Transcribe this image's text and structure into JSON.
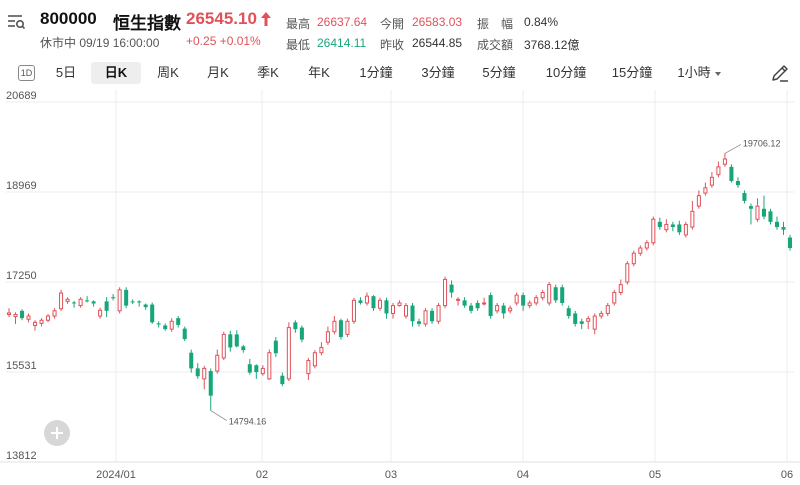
{
  "header": {
    "code": "800000",
    "name": "恒生指數",
    "price": "26545.10",
    "status": "休市中 09/19 16:00:00",
    "change": "+0.25 +0.01%",
    "stats": [
      {
        "label": "最高",
        "value": "26637.64",
        "tone": "red"
      },
      {
        "label": "今開",
        "value": "26583.03",
        "tone": "red"
      },
      {
        "label": "振　幅",
        "value": "0.84%",
        "tone": "dark"
      },
      {
        "label": "最低",
        "value": "26414.11",
        "tone": "green"
      },
      {
        "label": "昨收",
        "value": "26544.85",
        "tone": "dark"
      },
      {
        "label": "成交額",
        "value": "3768.12億",
        "tone": "dark"
      }
    ]
  },
  "toolbar": {
    "tabs": [
      "1D",
      "5日",
      "日K",
      "周K",
      "月K",
      "季K",
      "年K",
      "1分鐘",
      "3分鐘",
      "5分鐘",
      "10分鐘",
      "15分鐘",
      "1小時"
    ],
    "active": "日K"
  },
  "colors": {
    "up": "#e0525a",
    "down": "#17a67a"
  },
  "chart_data": {
    "type": "candlestick",
    "y_ticks": [
      "20689",
      "18969",
      "17250",
      "15531",
      "13812"
    ],
    "ylim": [
      13812,
      20689
    ],
    "x_ticks": [
      "2024/01",
      "02",
      "03",
      "04",
      "05",
      "06"
    ],
    "annotations": [
      {
        "label": "19706.12",
        "kind": "high"
      },
      {
        "label": "14794.16",
        "kind": "low"
      }
    ],
    "candles": [
      [
        16630,
        16660,
        16580,
        16750
      ],
      [
        16590,
        16630,
        16450,
        16670
      ],
      [
        16700,
        16560,
        16520,
        16730
      ],
      [
        16540,
        16600,
        16480,
        16650
      ],
      [
        16420,
        16480,
        16320,
        16520
      ],
      [
        16460,
        16520,
        16400,
        16560
      ],
      [
        16520,
        16600,
        16480,
        16640
      ],
      [
        16600,
        16700,
        16550,
        16750
      ],
      [
        16740,
        17040,
        16700,
        17100
      ],
      [
        16880,
        16920,
        16830,
        16960
      ],
      [
        16860,
        16850,
        16760,
        16890
      ],
      [
        16800,
        16920,
        16760,
        16960
      ],
      [
        16900,
        16880,
        16860,
        16980
      ],
      [
        16880,
        16840,
        16780,
        16900
      ],
      [
        16600,
        16710,
        16550,
        16760
      ],
      [
        16880,
        16700,
        16580,
        16960
      ],
      [
        16960,
        16940,
        16900,
        17020
      ],
      [
        16700,
        17100,
        16650,
        17150
      ],
      [
        17100,
        16800,
        16750,
        17150
      ],
      [
        16880,
        16870,
        16830,
        16920
      ],
      [
        16880,
        16860,
        16780,
        16900
      ],
      [
        16820,
        16770,
        16720,
        16840
      ],
      [
        16820,
        16480,
        16450,
        16860
      ],
      [
        16460,
        16440,
        16380,
        16500
      ],
      [
        16420,
        16350,
        16320,
        16460
      ],
      [
        16350,
        16500,
        16300,
        16560
      ],
      [
        16560,
        16430,
        16380,
        16600
      ],
      [
        16360,
        16160,
        16120,
        16400
      ],
      [
        15900,
        15600,
        15520,
        15960
      ],
      [
        15600,
        15450,
        15400,
        15700
      ],
      [
        15400,
        15600,
        15200,
        15650
      ],
      [
        15550,
        15080,
        14794,
        15600
      ],
      [
        15550,
        15850,
        15500,
        15960
      ],
      [
        15800,
        16250,
        15760,
        16300
      ],
      [
        16250,
        16000,
        15920,
        16320
      ],
      [
        16250,
        16020,
        16000,
        16330
      ],
      [
        16020,
        15950,
        15900,
        16050
      ],
      [
        15680,
        15520,
        15480,
        15780
      ],
      [
        15660,
        15530,
        15400,
        15680
      ],
      [
        15500,
        15600,
        15460,
        15660
      ],
      [
        15400,
        15900,
        15380,
        15960
      ],
      [
        16130,
        15890,
        15820,
        16200
      ],
      [
        15460,
        15300,
        15260,
        15520
      ],
      [
        15400,
        16380,
        15360,
        16480
      ],
      [
        16480,
        16350,
        16280,
        16520
      ],
      [
        16380,
        16150,
        16100,
        16420
      ],
      [
        15500,
        15750,
        15380,
        15800
      ],
      [
        15650,
        15900,
        15600,
        15950
      ],
      [
        15900,
        16000,
        15850,
        16100
      ],
      [
        16100,
        16300,
        16050,
        16400
      ],
      [
        16300,
        16500,
        16250,
        16600
      ],
      [
        16520,
        16200,
        16150,
        16550
      ],
      [
        16250,
        16500,
        16200,
        16550
      ],
      [
        16500,
        16900,
        16450,
        16950
      ],
      [
        16900,
        16850,
        16820,
        16960
      ],
      [
        16850,
        16980,
        16800,
        17050
      ],
      [
        16980,
        16750,
        16700,
        17000
      ],
      [
        16750,
        16900,
        16700,
        16950
      ],
      [
        16900,
        16650,
        16550,
        16950
      ],
      [
        16650,
        16800,
        16550,
        16850
      ],
      [
        16800,
        16850,
        16780,
        16900
      ],
      [
        16600,
        16800,
        16550,
        16850
      ],
      [
        16800,
        16500,
        16400,
        16850
      ],
      [
        16500,
        16450,
        16400,
        16550
      ],
      [
        16450,
        16700,
        16400,
        16750
      ],
      [
        16700,
        16500,
        16450,
        16750
      ],
      [
        16500,
        16800,
        16450,
        16850
      ],
      [
        16800,
        17300,
        16750,
        17350
      ],
      [
        17200,
        17050,
        16950,
        17280
      ],
      [
        16900,
        16920,
        16800,
        16960
      ],
      [
        16900,
        16800,
        16760,
        16960
      ],
      [
        16800,
        16700,
        16650,
        16850
      ],
      [
        16850,
        16750,
        16700,
        16900
      ],
      [
        16850,
        16850,
        16800,
        16950
      ],
      [
        17000,
        16600,
        16550,
        17050
      ],
      [
        16700,
        16800,
        16650,
        16850
      ],
      [
        16800,
        16650,
        16550,
        16850
      ],
      [
        16700,
        16750,
        16650,
        16800
      ],
      [
        16850,
        17000,
        16800,
        17050
      ],
      [
        17000,
        16800,
        16700,
        17050
      ],
      [
        16800,
        16850,
        16750,
        16900
      ],
      [
        16850,
        16950,
        16800,
        17000
      ],
      [
        16950,
        17050,
        16900,
        17100
      ],
      [
        16850,
        17200,
        16800,
        17250
      ],
      [
        17150,
        16900,
        16850,
        17200
      ],
      [
        17150,
        16850,
        16800,
        17200
      ],
      [
        16750,
        16600,
        16550,
        16800
      ],
      [
        16650,
        16450,
        16400,
        16700
      ],
      [
        16500,
        16450,
        16350,
        16550
      ],
      [
        16500,
        16550,
        16350,
        16600
      ],
      [
        16350,
        16600,
        16250,
        16650
      ],
      [
        16600,
        16650,
        16550,
        16700
      ],
      [
        16650,
        16800,
        16600,
        16850
      ],
      [
        16850,
        17050,
        16800,
        17100
      ],
      [
        17050,
        17200,
        17000,
        17300
      ],
      [
        17250,
        17600,
        17200,
        17650
      ],
      [
        17600,
        17800,
        17550,
        17850
      ],
      [
        17800,
        17900,
        17750,
        17950
      ],
      [
        17900,
        18000,
        17850,
        18050
      ],
      [
        18000,
        18450,
        17950,
        18500
      ],
      [
        18400,
        18300,
        18250,
        18480
      ],
      [
        18250,
        18350,
        18200,
        18450
      ],
      [
        18350,
        18300,
        18220,
        18400
      ],
      [
        18350,
        18200,
        18150,
        18420
      ],
      [
        18150,
        18350,
        18100,
        18400
      ],
      [
        18300,
        18600,
        18250,
        18800
      ],
      [
        18700,
        18900,
        18650,
        19000
      ],
      [
        18950,
        19050,
        18900,
        19150
      ],
      [
        19100,
        19250,
        19050,
        19350
      ],
      [
        19300,
        19450,
        19250,
        19550
      ],
      [
        19500,
        19600,
        19450,
        19706
      ],
      [
        19450,
        19180,
        19150,
        19500
      ],
      [
        19180,
        19100,
        19050,
        19250
      ],
      [
        18950,
        18800,
        18750,
        19000
      ],
      [
        18700,
        18650,
        18350,
        18750
      ],
      [
        18450,
        18700,
        18400,
        18850
      ],
      [
        18650,
        18500,
        18450,
        18900
      ],
      [
        18600,
        18400,
        18350,
        18650
      ],
      [
        18400,
        18300,
        18250,
        18500
      ],
      [
        18300,
        18250,
        18150,
        18400
      ],
      [
        18100,
        17900,
        17850,
        18150
      ]
    ]
  }
}
